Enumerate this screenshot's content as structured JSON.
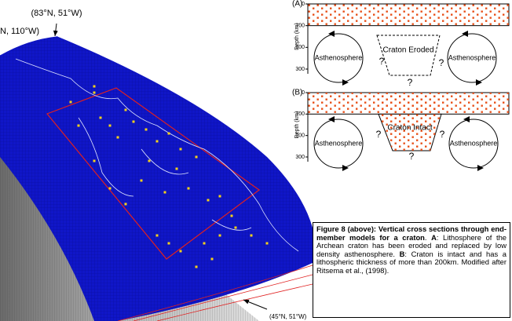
{
  "map": {
    "corner_top": "(83°N, 51°W)",
    "corner_left": "N, 110°W)",
    "corner_bottom": "(45°N, 51°W)"
  },
  "sections": {
    "depth_label": "Depth (km)",
    "depth_ticks": [
      0,
      100,
      200,
      300
    ],
    "panels": [
      {
        "label": "(A)",
        "left": "Asthenosphere",
        "right": "Asthenosphere",
        "center": "Craton Eroded",
        "q_left": "?",
        "q_right": "?",
        "q_bottom": "?"
      },
      {
        "label": "(B)",
        "left": "Asthenosphere",
        "right": "Asthenosphere",
        "center": "Craton Intact",
        "q_left": "?",
        "q_right": "?",
        "q_bottom": "?"
      }
    ]
  },
  "caption": {
    "title": "Figure 8 (above): Vertical cross sections through end-member models for a craton",
    "sep": ". ",
    "a_key": "A",
    "a_text": ": Lithosphere of the Archean craton has been eroded and replaced by low density asthenosphere. ",
    "b_key": "B",
    "b_text": ": Craton is intact and has a lithospheric thickness of more than 200km.  Modified after Ritsema et al., (1998)."
  }
}
